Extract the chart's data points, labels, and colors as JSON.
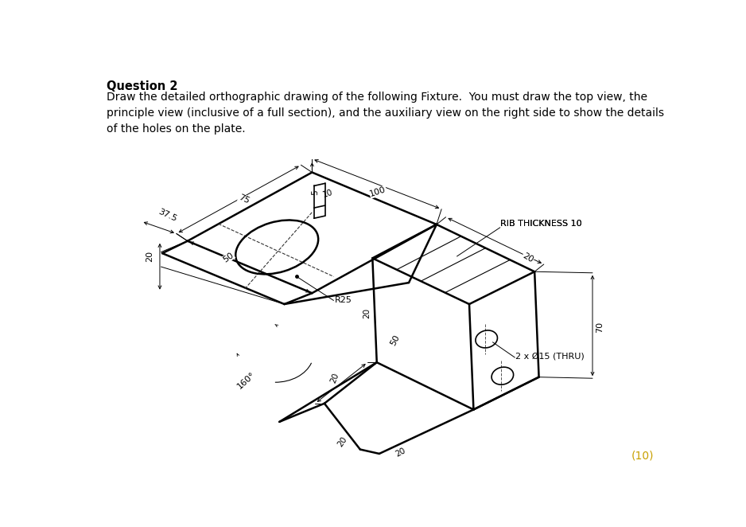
{
  "bg_color": "#ffffff",
  "title_bold": "Question 2",
  "title_body": "Draw the detailed orthographic drawing of the following Fixture.  You must draw the top view, the\nprinciple view (inclusive of a full section), and the auxiliary view on the right side to show the details\nof the holes on the plate.",
  "score": "(10)",
  "dim_labels": {
    "d37_5": "37.5",
    "d75": "75",
    "d100": "100",
    "d5": "5",
    "d10": "10",
    "d50a": "50",
    "d20a": "20",
    "dR25": "R25",
    "d50b": "50",
    "d160": "160°",
    "d20b": "20",
    "d20c": "20",
    "d20d": "20",
    "d20e": "20",
    "d70": "70",
    "rib": "RIB THICKNESS 10",
    "holes": "2 x Ø15 (THRU)"
  }
}
